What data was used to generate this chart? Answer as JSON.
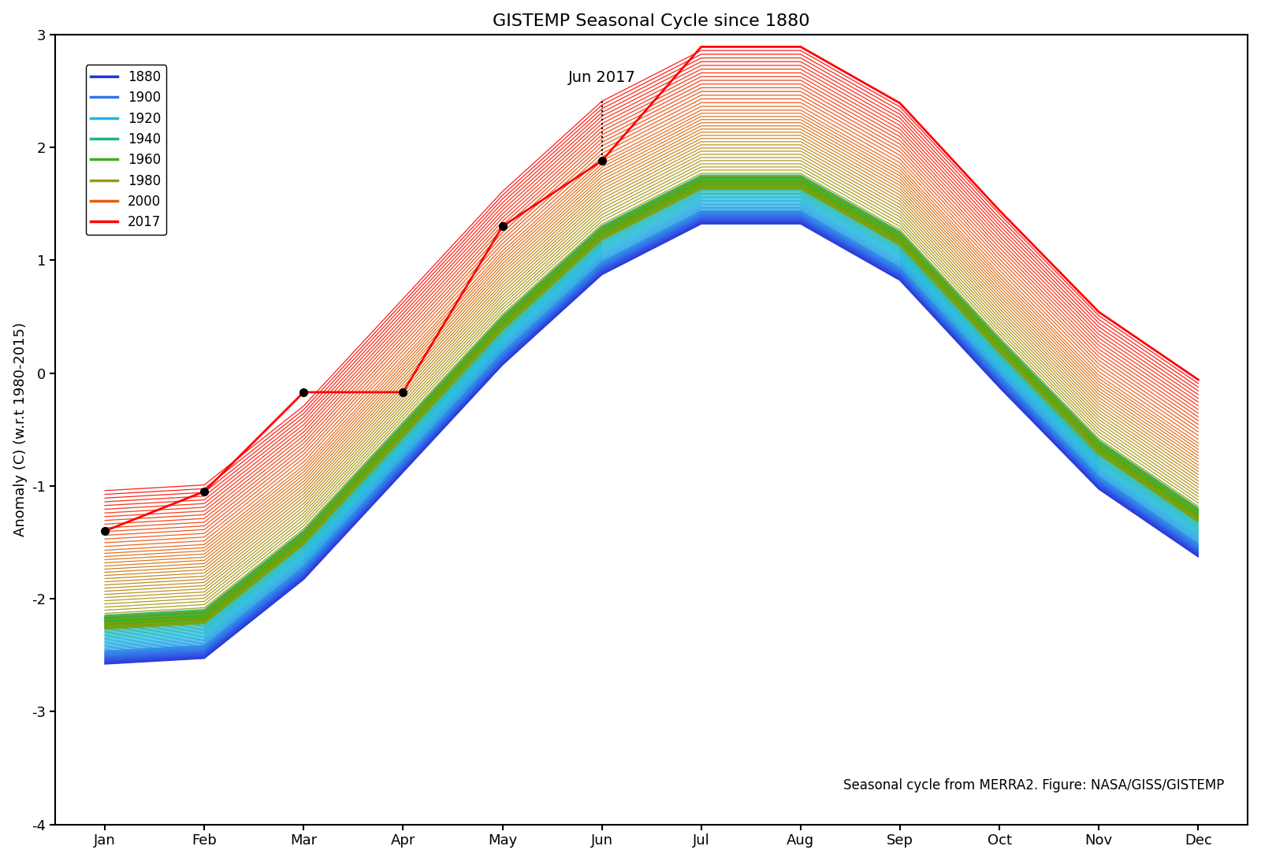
{
  "title": "GISTEMP Seasonal Cycle since 1880",
  "ylabel": "Anomaly (C) (w.r.t 1980-2015)",
  "months": [
    "Jan",
    "Feb",
    "Mar",
    "Apr",
    "May",
    "Jun",
    "Jul",
    "Aug",
    "Sep",
    "Oct",
    "Nov",
    "Dec"
  ],
  "ylim": [
    -4,
    3
  ],
  "year_start": 1880,
  "year_end": 2017,
  "annotation_text": "Jun 2017",
  "footnote": "Seasonal cycle from MERRA2. Figure: NASA/GISS/GISTEMP",
  "legend_years": [
    1880,
    1900,
    1920,
    1940,
    1960,
    1980,
    2000,
    2017
  ],
  "legend_labels": [
    "1880",
    "1900",
    "1920",
    "1940",
    "1960",
    "1980",
    "2000",
    "2017"
  ],
  "background_color": "#ffffff",
  "title_fontsize": 16,
  "label_fontsize": 13,
  "tick_fontsize": 13,
  "seasonal_cycle": [
    -2.0,
    -1.95,
    -1.25,
    -0.3,
    0.65,
    1.45,
    1.9,
    1.9,
    1.4,
    0.45,
    -0.45,
    -1.05
  ],
  "dots_2017_x": [
    0,
    1,
    2,
    3,
    4,
    5
  ],
  "dots_2017_y": [
    -1.4,
    -1.05,
    -0.17,
    -0.17,
    1.3,
    1.88
  ]
}
